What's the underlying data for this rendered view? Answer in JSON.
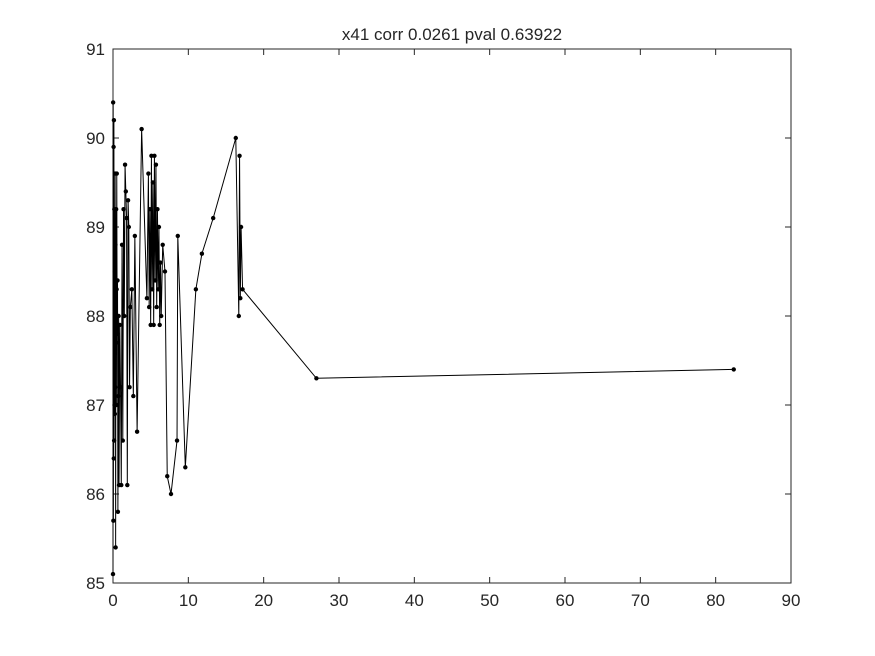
{
  "chart_data": {
    "type": "line",
    "title": "x41 corr 0.0261 pval 0.63922",
    "xlabel": "",
    "ylabel": "",
    "xlim": [
      0,
      90
    ],
    "ylim": [
      85,
      91
    ],
    "xticks": [
      "0",
      "10",
      "20",
      "30",
      "40",
      "50",
      "60",
      "70",
      "80",
      "90"
    ],
    "yticks": [
      "85",
      "86",
      "87",
      "88",
      "89",
      "90",
      "91"
    ],
    "grid": false,
    "legend": "none",
    "line_color": "#000000",
    "marker": "dot",
    "series": [
      {
        "x": [
          0.0,
          0.02,
          0.05,
          0.08,
          0.1,
          0.12,
          0.15,
          0.18,
          0.2,
          0.22,
          0.25,
          0.28,
          0.3,
          0.32,
          0.35,
          0.38,
          0.4,
          0.42,
          0.45,
          0.48,
          0.5,
          0.55,
          0.6,
          0.65,
          0.7,
          0.75,
          0.8,
          0.9,
          1.0,
          1.1,
          1.2,
          1.3,
          1.4,
          1.5,
          1.6,
          1.7,
          1.8,
          1.9,
          2.0,
          2.1,
          2.2,
          2.3,
          2.5,
          2.7,
          2.9,
          3.2,
          3.8,
          4.5,
          4.7,
          4.8,
          4.9,
          5.0,
          5.1,
          5.2,
          5.3,
          5.4,
          5.5,
          5.6,
          5.7,
          5.8,
          5.9,
          6.0,
          6.1,
          6.2,
          6.3,
          6.4,
          6.6,
          6.9,
          7.2,
          7.7,
          8.5,
          8.6,
          9.6,
          11.0,
          11.8,
          13.3,
          16.3,
          16.7,
          16.8,
          16.9,
          17.0,
          17.2,
          27.0,
          82.4
        ],
        "y": [
          85.1,
          90.4,
          85.7,
          89.9,
          86.4,
          90.2,
          86.6,
          89.2,
          87.0,
          88.5,
          86.9,
          89.6,
          87.2,
          88.8,
          85.4,
          88.0,
          87.7,
          89.2,
          87.0,
          88.3,
          89.6,
          87.8,
          88.4,
          85.8,
          87.1,
          88.0,
          86.1,
          87.9,
          87.2,
          86.1,
          88.8,
          86.6,
          89.2,
          88.0,
          89.7,
          89.4,
          89.1,
          86.1,
          89.3,
          89.0,
          87.2,
          88.1,
          88.3,
          87.1,
          88.9,
          86.7,
          90.1,
          88.2,
          89.6,
          88.1,
          89.2,
          87.9,
          89.8,
          88.3,
          89.5,
          87.9,
          89.8,
          88.4,
          89.7,
          88.1,
          89.2,
          88.3,
          89.0,
          87.9,
          88.6,
          88.0,
          88.8,
          88.5,
          86.2,
          86.0,
          86.6,
          88.9,
          86.3,
          88.3,
          88.7,
          89.1,
          90.0,
          88.0,
          89.8,
          88.2,
          89.0,
          88.3,
          87.3,
          87.4
        ]
      }
    ]
  }
}
